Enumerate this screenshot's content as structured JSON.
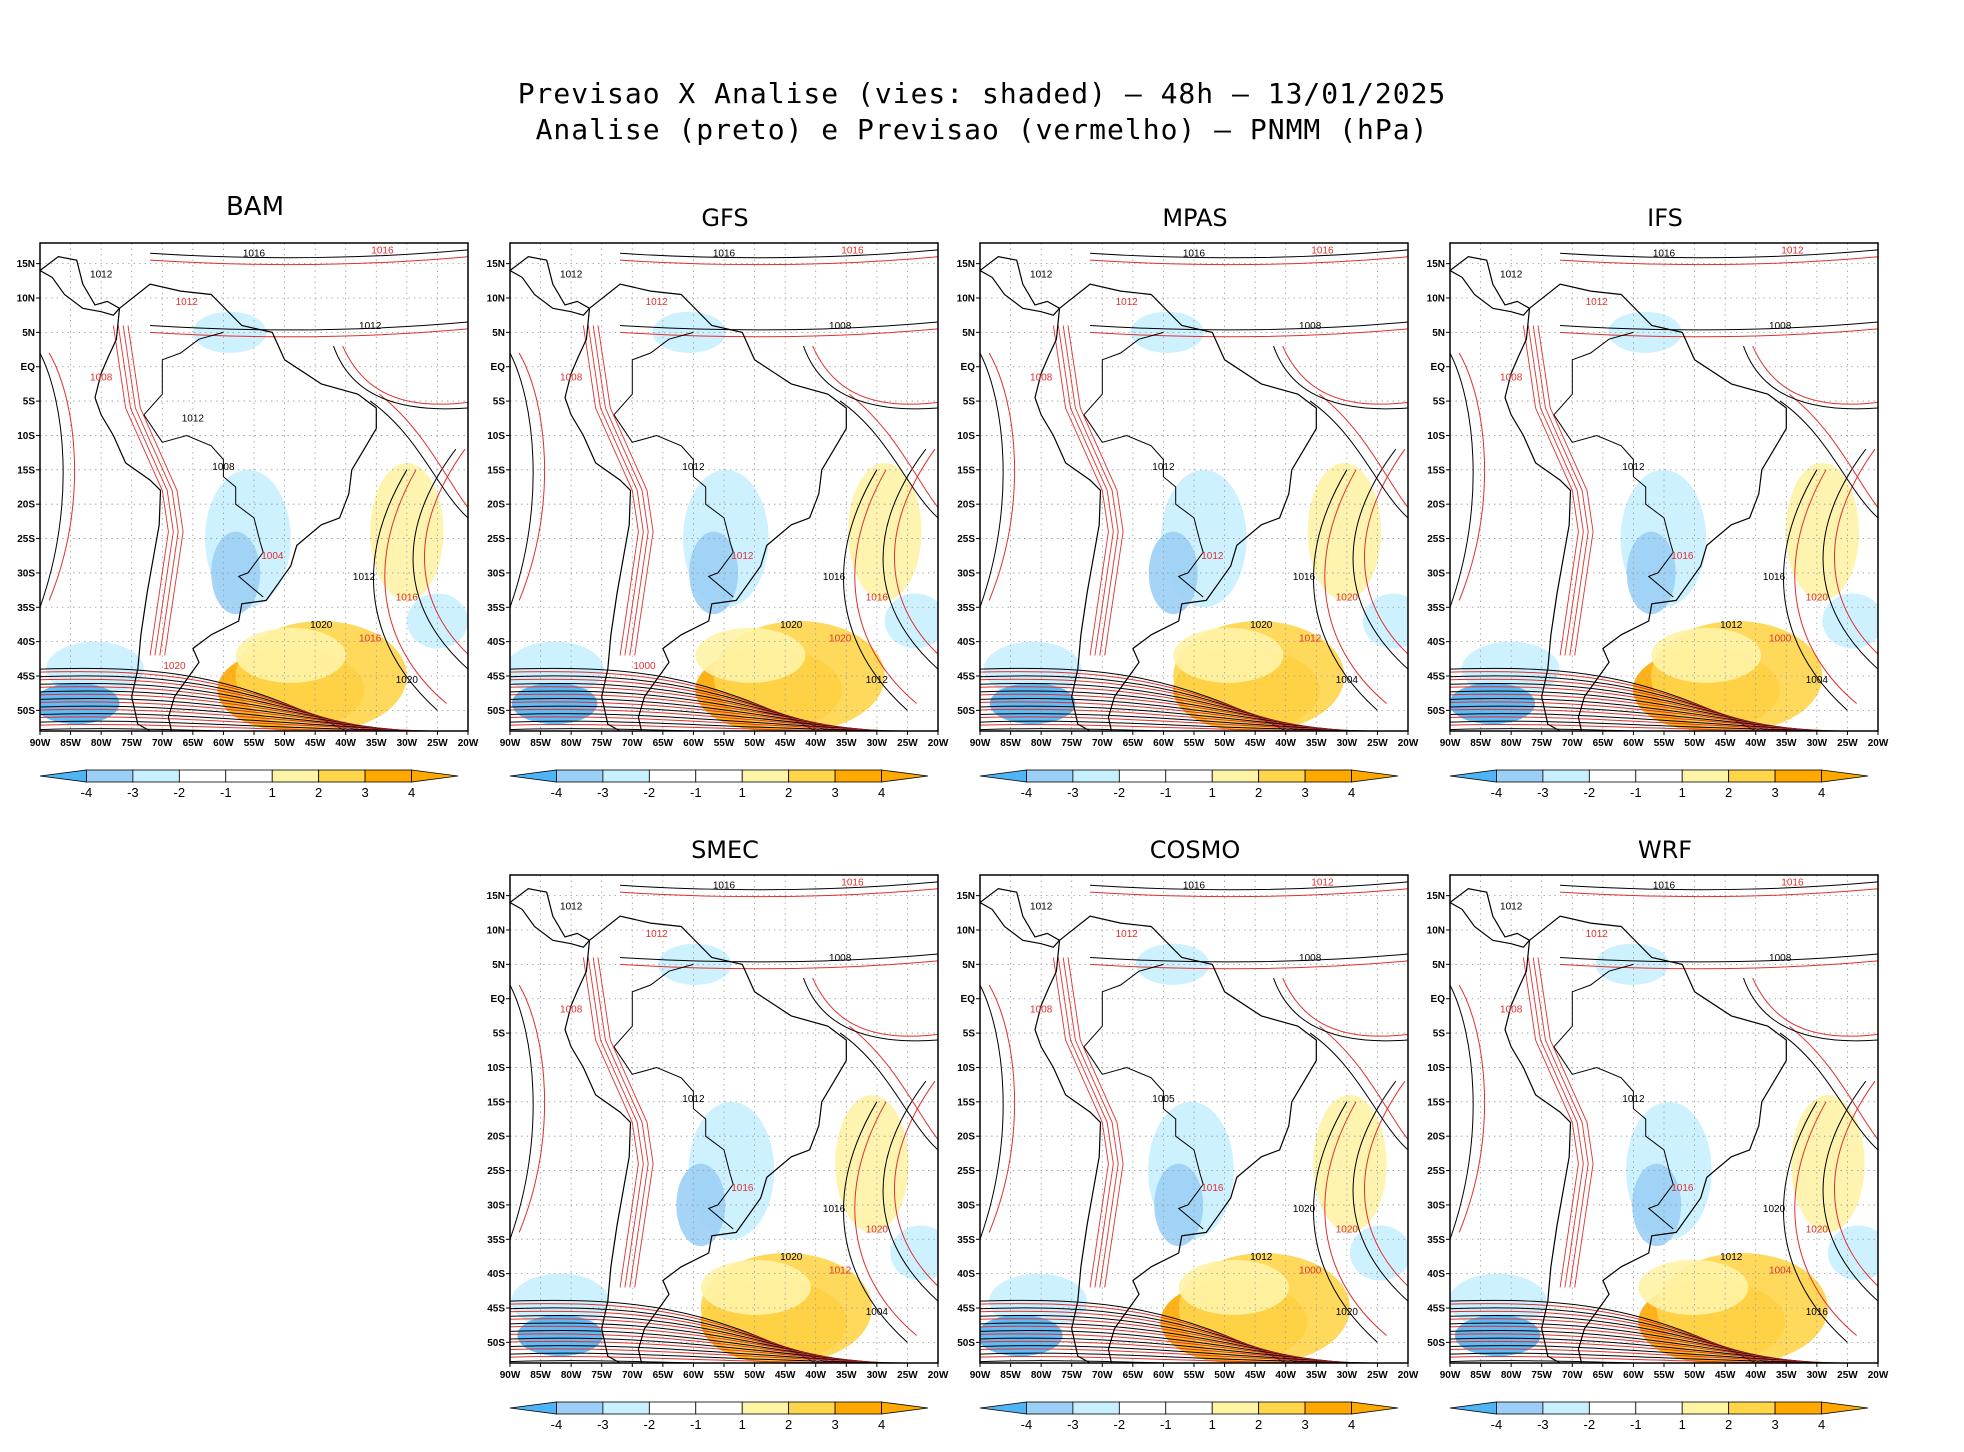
{
  "title": {
    "line1": "Previsao X Analise (vies: shaded) – 48h – 13/01/2025",
    "line2": "Analise (preto) e Previsao (vermelho) – PNMM (hPa)"
  },
  "colors": {
    "neg4": "#4fb4f5",
    "neg3": "#9ccff6",
    "neg2": "#c8f0ff",
    "neutral": "#ffffff",
    "pos2": "#fff3a6",
    "pos3": "#ffd54a",
    "pos4": "#ffa800",
    "analysis": "#000000",
    "forecast": "#e0302e"
  },
  "chart_data": {
    "type": "heatmap",
    "variable": "PNMM (hPa)",
    "lead_time": "48h",
    "date": "13/01/2025",
    "shading": "vies",
    "lon_ticks": [
      "90W",
      "85W",
      "80W",
      "75W",
      "70W",
      "65W",
      "60W",
      "55W",
      "50W",
      "45W",
      "40W",
      "35W",
      "30W",
      "25W",
      "20W"
    ],
    "lat_ticks": [
      "15N",
      "10N",
      "5N",
      "EQ",
      "5S",
      "10S",
      "15S",
      "20S",
      "25S",
      "30S",
      "35S",
      "40S",
      "45S",
      "50S"
    ],
    "lon_range": [
      -90,
      -20
    ],
    "lat_range": [
      -53,
      18
    ],
    "colorbar_labels": [
      "-4",
      "-3",
      "-2",
      "-1",
      "1",
      "2",
      "3",
      "4"
    ],
    "panels": [
      {
        "name": "BAM",
        "contour_labels": [
          "1016",
          "1016",
          "1012",
          "1012",
          "1012",
          "1008",
          "1008",
          "1004",
          "1012",
          "1016",
          "1020",
          "1016",
          "1020",
          "1020",
          "1012"
        ]
      },
      {
        "name": "GFS",
        "contour_labels": [
          "1016",
          "1016",
          "1012",
          "1012",
          "1008",
          "1008",
          "1012",
          "1012",
          "1016",
          "1016",
          "1020",
          "1020",
          "1012",
          "1000"
        ]
      },
      {
        "name": "MPAS",
        "contour_labels": [
          "1016",
          "1016",
          "1012",
          "1012",
          "1008",
          "1008",
          "1012",
          "1012",
          "1016",
          "1020",
          "1020",
          "1012",
          "1004"
        ]
      },
      {
        "name": "IFS",
        "contour_labels": [
          "1016",
          "1012",
          "1012",
          "1012",
          "1008",
          "1008",
          "1012",
          "1016",
          "1016",
          "1020",
          "1012",
          "1000",
          "1004"
        ]
      },
      {
        "name": "SMEC",
        "contour_labels": [
          "1016",
          "1016",
          "1012",
          "1012",
          "1008",
          "1008",
          "1012",
          "1016",
          "1016",
          "1020",
          "1020",
          "1012",
          "1004"
        ]
      },
      {
        "name": "COSMO",
        "contour_labels": [
          "1016",
          "1012",
          "1012",
          "1012",
          "1008",
          "1008",
          "1005",
          "1016",
          "1020",
          "1020",
          "1012",
          "1000",
          "1020"
        ]
      },
      {
        "name": "WRF",
        "contour_labels": [
          "1016",
          "1016",
          "1012",
          "1012",
          "1008",
          "1008",
          "1012",
          "1016",
          "1020",
          "1020",
          "1012",
          "1004",
          "1016"
        ]
      }
    ]
  }
}
